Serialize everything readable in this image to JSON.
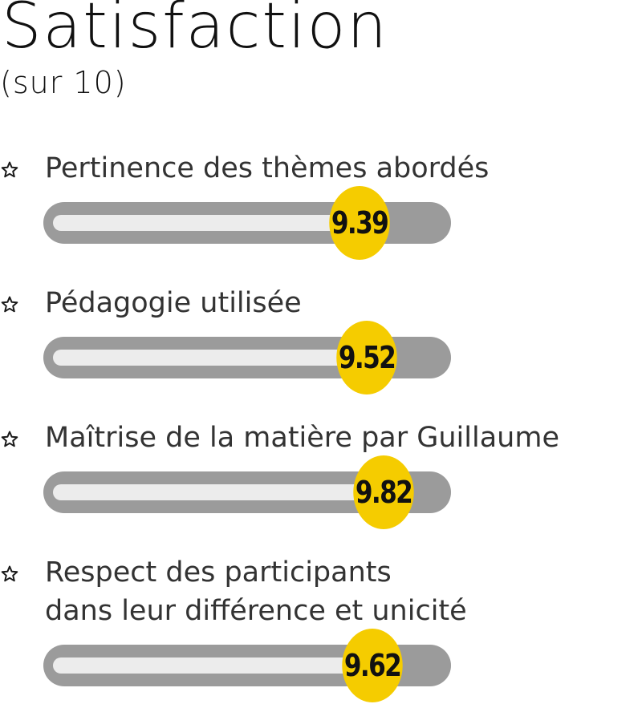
{
  "header": {
    "title": "Satisfaction",
    "subtitle": "(sur 10)"
  },
  "chart_data": {
    "type": "bar",
    "title": "Satisfaction",
    "subtitle": "(sur 10)",
    "xlim": [
      0,
      10
    ],
    "categories": [
      "Pertinence des thèmes abordés",
      "Pédagogie utilisée",
      "Maîtrise de la matière par Guillaume",
      "Respect des participants dans leur différence et unicité"
    ],
    "values": [
      9.39,
      9.52,
      9.82,
      9.62
    ],
    "data_labels": [
      "9.39",
      "9.52",
      "9.82",
      "9.62"
    ]
  },
  "items": [
    {
      "label_lines": [
        "Pertinence des thèmes abordés"
      ],
      "value_label": "9.39"
    },
    {
      "label_lines": [
        "Pédagogie utilisée"
      ],
      "value_label": "9.52"
    },
    {
      "label_lines": [
        "Maîtrise de la matière par Guillaume"
      ],
      "value_label": "9.82"
    },
    {
      "label_lines": [
        "Respect des participants",
        "dans leur différence et unicité"
      ],
      "value_label": "9.62"
    }
  ],
  "colors": {
    "track": "#9b9b9b",
    "fill": "#ececec",
    "badge": "#f5cc00",
    "text": "#333333"
  },
  "icons": {
    "bullet": "star-outline-icon"
  }
}
